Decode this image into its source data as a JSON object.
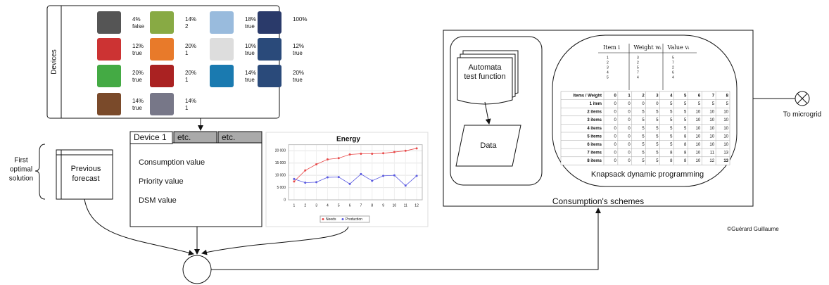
{
  "devices": {
    "label": "Devices",
    "items": [
      {
        "pct": "4%",
        "state": "false"
      },
      {
        "pct": "14%",
        "state": "2"
      },
      {
        "pct": "18%",
        "state": "true"
      },
      {
        "pct": "100%"
      },
      {
        "pct": "12%",
        "state": "true"
      },
      {
        "pct": "20%",
        "state": "1"
      },
      {
        "pct": "10%",
        "state": "true"
      },
      {
        "pct": "12%",
        "state": "true"
      },
      {
        "pct": "20%",
        "state": "true"
      },
      {
        "pct": "20%",
        "state": "1"
      },
      {
        "pct": "14%",
        "state": "true"
      },
      {
        "pct": "20%",
        "state": "true"
      },
      {
        "pct": "14%",
        "state": "true"
      },
      {
        "pct": "14%",
        "state": "1"
      }
    ]
  },
  "first_solution": [
    "First",
    "optimal",
    "solution"
  ],
  "previous_forecast": [
    "Previous",
    "forecast"
  ],
  "device_panel": {
    "tabs": [
      "Device 1",
      "etc.",
      "etc."
    ],
    "fields": [
      "Consumption value",
      "Priority value",
      "DSM value"
    ]
  },
  "energy_chart": {
    "type": "line",
    "title": "Energy",
    "x": [
      1,
      2,
      3,
      4,
      5,
      6,
      7,
      8,
      9,
      10,
      11,
      12
    ],
    "xlim": [
      0.5,
      12.5
    ],
    "ylim": [
      0,
      22500
    ],
    "yticks": [
      0,
      {
        "value": 5000,
        "label": "5 000"
      },
      {
        "value": 10000,
        "label": "10 000"
      },
      {
        "value": 15000,
        "label": "15 000"
      },
      {
        "value": 20000,
        "label": "20 000"
      }
    ],
    "grid": true,
    "series": [
      {
        "name": "Needs",
        "color": "#e84a4a",
        "values": [
          7500,
          12000,
          14500,
          16500,
          17000,
          18500,
          18800,
          18800,
          19000,
          19500,
          20000,
          21000
        ]
      },
      {
        "name": "Production",
        "color": "#5a5ae0",
        "values": [
          8500,
          7000,
          7200,
          9200,
          9300,
          6500,
          10500,
          7800,
          9800,
          10000,
          5800,
          9800
        ]
      }
    ]
  },
  "automata": [
    "Automata",
    "test function"
  ],
  "data_label": "Data",
  "items_table": {
    "headers": [
      "Item i",
      "Weight wᵢ",
      "Value vᵢ"
    ],
    "rows": [
      [
        "1",
        "3",
        "5"
      ],
      [
        "2",
        "2",
        "7"
      ],
      [
        "3",
        "5",
        "2"
      ],
      [
        "4",
        "7",
        "6"
      ],
      [
        "5",
        "4",
        "4"
      ]
    ]
  },
  "knapsack_table": {
    "header": [
      "Items / Weight",
      "0",
      "1",
      "2",
      "3",
      "4",
      "5",
      "6",
      "7",
      "8"
    ],
    "rows": [
      [
        "1 item",
        "0",
        "0",
        "0",
        "0",
        "5",
        "5",
        "5",
        "5",
        "5"
      ],
      [
        "2 items",
        "0",
        "0",
        "5",
        "5",
        "5",
        "5",
        "10",
        "10",
        "10"
      ],
      [
        "3 items",
        "0",
        "0",
        "5",
        "5",
        "5",
        "5",
        "10",
        "10",
        "10"
      ],
      [
        "4 items",
        "0",
        "0",
        "5",
        "5",
        "5",
        "5",
        "10",
        "10",
        "10"
      ],
      [
        "5 items",
        "0",
        "0",
        "5",
        "5",
        "5",
        "8",
        "10",
        "10",
        "10"
      ],
      [
        "6 items",
        "0",
        "0",
        "5",
        "5",
        "5",
        "8",
        "10",
        "10",
        "10"
      ],
      [
        "7 items",
        "0",
        "0",
        "5",
        "5",
        "8",
        "8",
        "10",
        "11",
        "13"
      ],
      [
        "8 items",
        "0",
        "0",
        "5",
        "5",
        "8",
        "8",
        "10",
        "12",
        "13"
      ]
    ]
  },
  "knapsack_label": "Knapsack dynamic programming",
  "consumption_label": "Consumption's schemes",
  "microgrid_label": "To microgrid",
  "credit": "©Guérard Guillaume"
}
